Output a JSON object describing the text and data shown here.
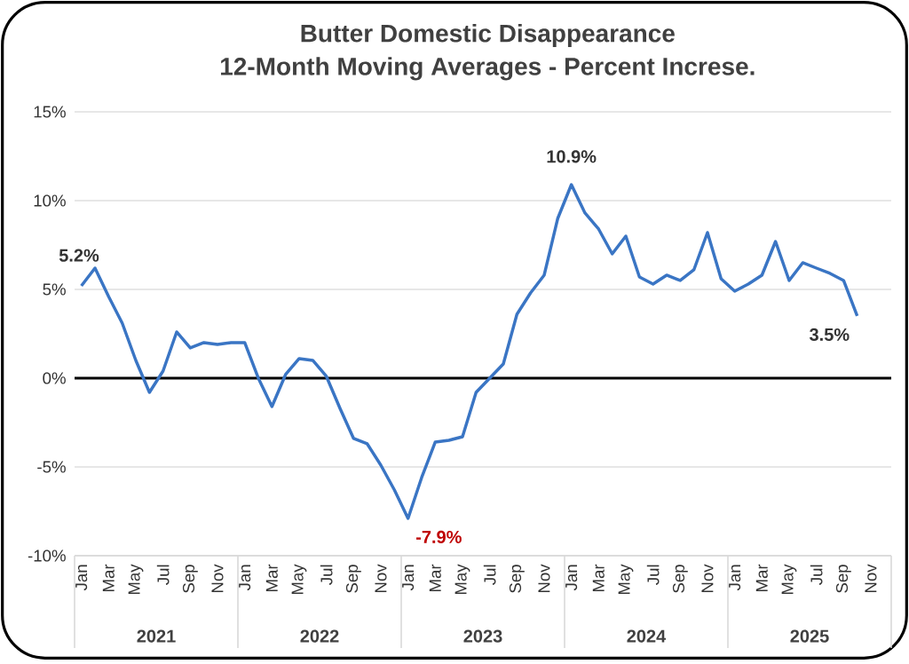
{
  "chart_data": {
    "type": "line",
    "title": "Butter Domestic Disappearance",
    "subtitle": "12-Month Moving Averages - Percent Increse.",
    "categories": [
      "Jan",
      null,
      "Mar",
      null,
      "May",
      null,
      "Jul",
      null,
      "Sep",
      null,
      "Nov",
      null,
      "Jan",
      null,
      "Mar",
      null,
      "May",
      null,
      "Jul",
      null,
      "Sep",
      null,
      "Nov",
      null,
      "Jan",
      null,
      "Mar",
      null,
      "May",
      null,
      "Jul",
      null,
      "Sep",
      null,
      "Nov",
      null,
      "Jan",
      null,
      "Mar",
      null,
      "May",
      null,
      "Jul",
      null,
      "Sep",
      null,
      "Nov",
      null,
      "Jan",
      null,
      "Mar",
      null,
      "May",
      null,
      "Jul",
      null,
      "Sep",
      null,
      "Nov",
      null
    ],
    "annotations": [
      "2021",
      "2022",
      "2023",
      "2024",
      "2025"
    ],
    "series": [
      {
        "color": "#3a75c4",
        "values": [
          5.2,
          6.2,
          4.6,
          3.1,
          1.0,
          -0.8,
          0.4,
          2.6,
          1.7,
          2.0,
          1.9,
          2.0,
          2.0,
          0.0,
          -1.6,
          0.2,
          1.1,
          1.0,
          0.1,
          -1.7,
          -3.4,
          -3.7,
          -4.9,
          -6.3,
          -7.9,
          -5.6,
          -3.6,
          -3.5,
          -3.3,
          -0.8,
          0.0,
          0.8,
          3.6,
          4.8,
          5.8,
          9.0,
          10.9,
          9.3,
          8.4,
          7.0,
          8.0,
          5.7,
          5.3,
          5.8,
          5.5,
          6.1,
          8.2,
          5.6,
          4.9,
          5.3,
          5.8,
          7.7,
          5.5,
          6.5,
          6.2,
          5.9,
          5.5,
          3.5,
          null,
          null
        ],
        "value_labels": [
          "5.2%",
          null,
          null,
          null,
          null,
          null,
          null,
          null,
          null,
          null,
          null,
          null,
          null,
          null,
          null,
          null,
          null,
          null,
          null,
          null,
          null,
          null,
          null,
          null,
          "-7.9%",
          null,
          null,
          null,
          null,
          null,
          null,
          null,
          null,
          null,
          null,
          null,
          "10.9%",
          null,
          null,
          null,
          null,
          null,
          null,
          null,
          null,
          null,
          null,
          null,
          null,
          null,
          null,
          null,
          null,
          null,
          null,
          null,
          null,
          "3.5%",
          null,
          null
        ]
      }
    ],
    "ylim": [
      -10,
      15
    ],
    "yticks": [
      {
        "value": -10,
        "label": "-10%"
      },
      {
        "value": -5,
        "label": "-5%"
      },
      {
        "value": 0,
        "label": "0%"
      },
      {
        "value": 5,
        "label": "5%"
      },
      {
        "value": 10,
        "label": "10%"
      },
      {
        "value": 15,
        "label": "15%"
      }
    ],
    "grid": "y",
    "ref_lines": [
      {
        "axis": "y",
        "value": 0,
        "color": "#000000"
      }
    ]
  }
}
